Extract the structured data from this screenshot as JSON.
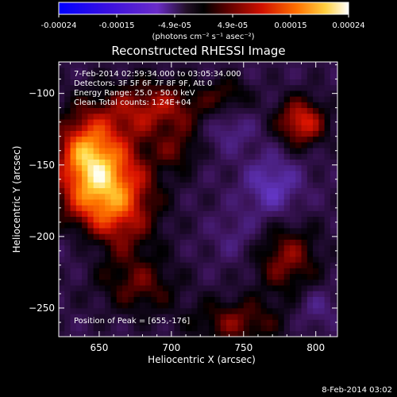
{
  "chart_data": {
    "type": "heatmap",
    "title": "Reconstructed RHESSI Image",
    "xlabel": "Heliocentric X (arcsec)",
    "ylabel": "Heliocentric Y (arcsec)",
    "xlim": [
      622,
      815
    ],
    "ylim": [
      -270,
      -78
    ],
    "x_ticks": [
      650,
      700,
      750,
      800
    ],
    "y_ticks": [
      -100,
      -150,
      -200,
      -250
    ],
    "colorbar": {
      "ticks": [
        "-0.00024",
        "-0.00015",
        "-4.9e-05",
        "4.9e-05",
        "0.00015",
        "0.00024"
      ],
      "unit_label": "(photons cm⁻² s⁻¹ asec⁻²)",
      "range": [
        -0.00024,
        0.00024
      ]
    },
    "annotations": [
      "7-Feb-2014 02:59:34.000 to 03:05:34.000",
      "Detectors: 3F 5F 6F 7F 8F 9F, Att 0",
      "Energy Range: 25.0 - 50.0 keV",
      "Clean     Total counts: 1.24E+04"
    ],
    "peak_text": "Position of Peak = [655,-176]",
    "peak": [
      655,
      -176
    ],
    "sources": [
      {
        "x": 655,
        "y": -170,
        "sx": 22,
        "sy": 30,
        "amp": 0.00024
      },
      {
        "x": 640,
        "y": -140,
        "sx": 14,
        "sy": 18,
        "amp": 0.00013
      },
      {
        "x": 690,
        "y": -110,
        "sx": 28,
        "sy": 14,
        "amp": 0.00012
      },
      {
        "x": 790,
        "y": -120,
        "sx": 12,
        "sy": 12,
        "amp": 0.00016
      },
      {
        "x": 780,
        "y": -215,
        "sx": 16,
        "sy": 18,
        "amp": 0.00011
      },
      {
        "x": 745,
        "y": -260,
        "sx": 22,
        "sy": 12,
        "amp": 0.0001
      },
      {
        "x": 680,
        "y": -235,
        "sx": 18,
        "sy": 14,
        "amp": 8e-05
      },
      {
        "x": 740,
        "y": -100,
        "sx": 10,
        "sy": 8,
        "amp": 6e-05
      },
      {
        "x": 705,
        "y": -140,
        "sx": 10,
        "sy": 10,
        "amp": 7e-05
      }
    ],
    "negative_regions": [
      {
        "x": 640,
        "y": -205,
        "sx": 16,
        "sy": 14,
        "amp": -7e-05
      },
      {
        "x": 770,
        "y": -165,
        "sx": 14,
        "sy": 16,
        "amp": -9e-05
      },
      {
        "x": 745,
        "y": -200,
        "sx": 12,
        "sy": 12,
        "amp": -4e-05
      },
      {
        "x": 740,
        "y": -125,
        "sx": 12,
        "sy": 10,
        "amp": -6e-05
      },
      {
        "x": 800,
        "y": -250,
        "sx": 10,
        "sy": 10,
        "amp": -5e-05
      }
    ]
  },
  "footer": {
    "timestamp": "8-Feb-2014 03:02"
  }
}
